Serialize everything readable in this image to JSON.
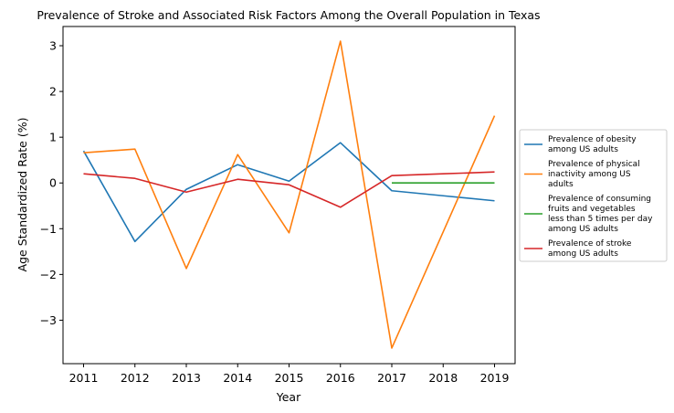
{
  "chart_data": {
    "type": "line",
    "title": "Prevalence of Stroke and Associated Risk Factors Among the Overall Population in Texas",
    "xlabel": "Year",
    "ylabel": "Age Standardized Rate (%)",
    "x": [
      2011,
      2012,
      2013,
      2014,
      2015,
      2016,
      2017,
      2018,
      2019
    ],
    "xticks": [
      "2011",
      "2012",
      "2013",
      "2014",
      "2015",
      "2016",
      "2017",
      "2018",
      "2019"
    ],
    "yticks": [
      -3,
      -2,
      -1,
      0,
      1,
      2,
      3
    ],
    "ytick_labels": [
      "−3",
      "−2",
      "−1",
      "0",
      "1",
      "2",
      "3"
    ],
    "xlim": [
      2010.6,
      2019.4
    ],
    "ylim": [
      -3.95,
      3.42
    ],
    "grid": false,
    "legend_position": "center-right-outside",
    "series": [
      {
        "name": "Prevalence of obesity among US adults",
        "legend_lines": [
          "Prevalence of obesity",
          "among US adults"
        ],
        "color": "#1f77b4",
        "values": [
          0.7,
          -1.28,
          -0.14,
          0.4,
          0.04,
          0.88,
          -0.17,
          -0.28,
          -0.39
        ]
      },
      {
        "name": "Prevalence of physical inactivity among US adults",
        "legend_lines": [
          "Prevalence of physical",
          "inactivity among US",
          "adults"
        ],
        "color": "#ff7f0e",
        "values": [
          0.66,
          0.74,
          -1.87,
          0.62,
          -1.09,
          3.1,
          -3.61,
          -1.07,
          1.47
        ]
      },
      {
        "name": "Prevalence of consuming fruits and vegetables less than 5 times per day among US adults",
        "legend_lines": [
          "Prevalence of consuming",
          "fruits and vegetables",
          "less than 5 times per day",
          "among US adults"
        ],
        "color": "#2ca02c",
        "values": [
          null,
          null,
          null,
          null,
          null,
          null,
          0.0,
          0.0,
          0.0
        ]
      },
      {
        "name": "Prevalence of stroke among US adults",
        "legend_lines": [
          "Prevalence of stroke",
          "among US adults"
        ],
        "color": "#d62728",
        "values": [
          0.2,
          0.1,
          -0.2,
          0.08,
          -0.04,
          -0.53,
          0.16,
          0.2,
          0.24
        ]
      }
    ]
  }
}
